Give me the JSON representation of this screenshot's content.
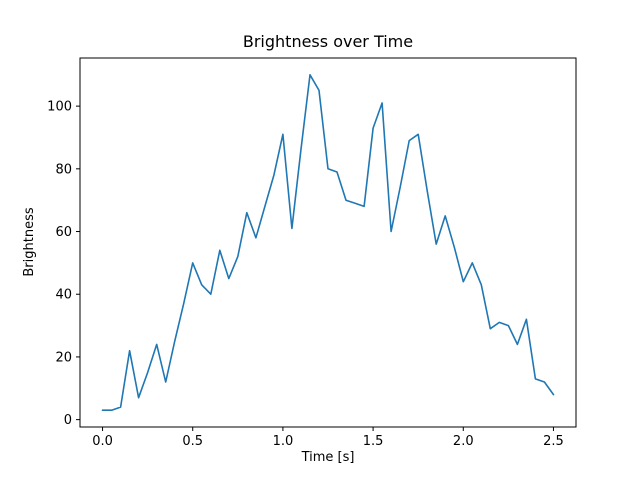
{
  "figure": {
    "background": "#ffffff"
  },
  "chart_data": {
    "type": "line",
    "title": "Brightness over Time",
    "xlabel": "Time [s]",
    "ylabel": "Brightness",
    "line_color": "#1f77b4",
    "grid": false,
    "legend": "none",
    "xlim": [
      -0.125,
      2.625
    ],
    "ylim": [
      -2.35,
      115.35
    ],
    "xticks": [
      0.0,
      0.5,
      1.0,
      1.5,
      2.0,
      2.5
    ],
    "xtick_labels": [
      "0.0",
      "0.5",
      "1.0",
      "1.5",
      "2.0",
      "2.5"
    ],
    "yticks": [
      0,
      20,
      40,
      60,
      80,
      100
    ],
    "ytick_labels": [
      "0",
      "20",
      "40",
      "60",
      "80",
      "100"
    ],
    "x": [
      0.0,
      0.05,
      0.1,
      0.15,
      0.2,
      0.25,
      0.3,
      0.35,
      0.4,
      0.45,
      0.5,
      0.55,
      0.6,
      0.65,
      0.7,
      0.75,
      0.8,
      0.85,
      0.9,
      0.95,
      1.0,
      1.05,
      1.1,
      1.15,
      1.2,
      1.25,
      1.3,
      1.35,
      1.4,
      1.45,
      1.5,
      1.55,
      1.6,
      1.65,
      1.7,
      1.75,
      1.8,
      1.85,
      1.9,
      1.95,
      2.0,
      2.05,
      2.1,
      2.15,
      2.2,
      2.25,
      2.3,
      2.35,
      2.4,
      2.45,
      2.5
    ],
    "y": [
      3,
      3,
      4,
      22,
      7,
      15,
      24,
      12,
      25,
      37,
      50,
      43,
      40,
      54,
      45,
      52,
      66,
      58,
      68,
      78,
      91,
      61,
      86,
      110,
      105,
      80,
      79,
      70,
      69,
      68,
      93,
      101,
      60,
      74,
      89,
      91,
      73,
      56,
      65,
      55,
      44,
      50,
      43,
      29,
      31,
      30,
      24,
      32,
      13,
      12,
      8
    ]
  }
}
